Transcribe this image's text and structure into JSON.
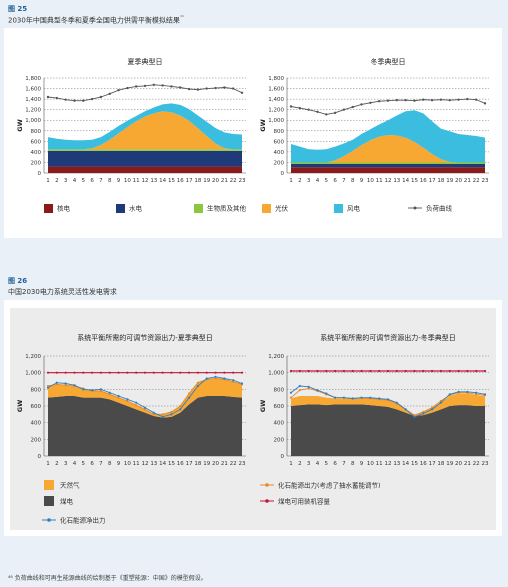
{
  "fig25": {
    "label": "图 25",
    "subtitle": "2030年中国典型冬季和夏季全国电力供需平衡模拟结果",
    "superscript": "⁴⁶"
  },
  "fig26": {
    "label": "图 26",
    "subtitle": "中国2030电力系统灵活性发电需求"
  },
  "footnote": "⁴⁶ 负荷曲线和可再生能源曲线的绘制基于《重塑能源：中国》的模型假设。",
  "colors": {
    "nuclear": "#8b1a1a",
    "hydro": "#1e3a78",
    "biomass": "#8cc63f",
    "solar": "#f7a833",
    "wind": "#3bbde0",
    "load": "#555555",
    "gas": "#f7a833",
    "coal": "#4a4a4a",
    "fossil_net": "#2f7fc1",
    "fossil_pumped": "#e8892b",
    "coal_capacity": "#c0143c"
  },
  "chart_data": [
    {
      "id": "summer-supply",
      "type": "area",
      "title": "夏季典型日",
      "ylabel": "GW",
      "ylim": [
        0,
        1800
      ],
      "yticks": [
        "0",
        "200",
        "400",
        "600",
        "800",
        "1,000",
        "1,200",
        "1,400",
        "1,600",
        "1,800"
      ],
      "categories": [
        "1",
        "2",
        "3",
        "4",
        "5",
        "6",
        "7",
        "8",
        "9",
        "10",
        "11",
        "12",
        "13",
        "14",
        "15",
        "16",
        "17",
        "18",
        "19",
        "20",
        "21",
        "22",
        "23"
      ],
      "stack": [
        {
          "name": "核电",
          "key": "nuclear",
          "values": [
            120,
            120,
            120,
            120,
            120,
            120,
            120,
            120,
            120,
            120,
            120,
            120,
            120,
            120,
            120,
            120,
            120,
            120,
            120,
            120,
            120,
            120,
            120
          ]
        },
        {
          "name": "水电",
          "key": "hydro",
          "values": [
            300,
            300,
            300,
            300,
            300,
            300,
            300,
            300,
            300,
            300,
            300,
            300,
            300,
            300,
            300,
            300,
            300,
            300,
            300,
            300,
            300,
            300,
            300
          ]
        },
        {
          "name": "生物质及其他",
          "key": "biomass",
          "values": [
            30,
            30,
            30,
            30,
            30,
            30,
            30,
            30,
            30,
            30,
            30,
            30,
            30,
            30,
            30,
            30,
            30,
            30,
            30,
            30,
            30,
            30,
            30
          ]
        },
        {
          "name": "光伏",
          "key": "solar",
          "values": [
            0,
            0,
            0,
            0,
            0,
            20,
            80,
            180,
            300,
            420,
            530,
            620,
            680,
            720,
            700,
            640,
            540,
            400,
            250,
            110,
            20,
            0,
            0
          ]
        },
        {
          "name": "风电",
          "key": "wind",
          "values": [
            230,
            200,
            180,
            170,
            170,
            160,
            150,
            150,
            140,
            120,
            100,
            100,
            110,
            130,
            170,
            200,
            220,
            240,
            270,
            290,
            300,
            290,
            280
          ]
        }
      ],
      "load": {
        "name": "负荷曲线",
        "values": [
          1440,
          1420,
          1390,
          1370,
          1370,
          1400,
          1440,
          1500,
          1570,
          1610,
          1640,
          1650,
          1670,
          1660,
          1640,
          1620,
          1590,
          1580,
          1600,
          1610,
          1620,
          1600,
          1520
        ]
      }
    },
    {
      "id": "winter-supply",
      "type": "area",
      "title": "冬季典型日",
      "ylabel": "GW",
      "ylim": [
        0,
        1800
      ],
      "yticks": [
        "0",
        "200",
        "400",
        "600",
        "800",
        "1,000",
        "1,200",
        "1,400",
        "1,600",
        "1,800"
      ],
      "categories": [
        "1",
        "2",
        "3",
        "4",
        "5",
        "6",
        "7",
        "8",
        "9",
        "10",
        "11",
        "12",
        "13",
        "14",
        "15",
        "16",
        "17",
        "18",
        "19",
        "20",
        "21",
        "22",
        "23"
      ],
      "stack": [
        {
          "name": "核电",
          "key": "nuclear",
          "values": [
            110,
            110,
            110,
            110,
            110,
            110,
            110,
            110,
            110,
            110,
            110,
            110,
            110,
            110,
            110,
            110,
            110,
            110,
            110,
            110,
            110,
            110,
            110
          ]
        },
        {
          "name": "水电",
          "key": "hydro",
          "values": [
            60,
            60,
            60,
            60,
            60,
            60,
            60,
            60,
            60,
            60,
            60,
            60,
            60,
            60,
            60,
            60,
            60,
            60,
            60,
            60,
            60,
            60,
            60
          ]
        },
        {
          "name": "生物质及其他",
          "key": "biomass",
          "values": [
            30,
            30,
            30,
            30,
            30,
            30,
            30,
            30,
            30,
            30,
            30,
            30,
            30,
            30,
            30,
            30,
            30,
            30,
            30,
            30,
            30,
            30,
            30
          ]
        },
        {
          "name": "光伏",
          "key": "solar",
          "values": [
            0,
            0,
            0,
            0,
            0,
            40,
            120,
            220,
            330,
            420,
            490,
            520,
            510,
            470,
            390,
            280,
            160,
            60,
            10,
            0,
            0,
            0,
            0
          ]
        },
        {
          "name": "风电",
          "key": "wind",
          "values": [
            350,
            300,
            250,
            240,
            250,
            260,
            240,
            210,
            210,
            210,
            230,
            280,
            380,
            500,
            600,
            650,
            620,
            580,
            580,
            540,
            520,
            500,
            470
          ]
        }
      ],
      "load": {
        "name": "负荷曲线",
        "values": [
          1260,
          1230,
          1200,
          1160,
          1110,
          1140,
          1200,
          1250,
          1300,
          1330,
          1360,
          1370,
          1380,
          1380,
          1370,
          1390,
          1380,
          1390,
          1380,
          1390,
          1400,
          1390,
          1320
        ]
      }
    },
    {
      "id": "summer-flex",
      "type": "area",
      "title": "系统平衡所需的可调节资源出力-夏季典型日",
      "ylabel": "GW",
      "ylim": [
        0,
        1200
      ],
      "yticks": [
        "0",
        "200",
        "400",
        "600",
        "800",
        "1,000",
        "1,200"
      ],
      "categories": [
        "1",
        "2",
        "3",
        "4",
        "5",
        "6",
        "7",
        "8",
        "9",
        "10",
        "11",
        "12",
        "13",
        "14",
        "15",
        "16",
        "17",
        "18",
        "19",
        "20",
        "21",
        "22",
        "23"
      ],
      "stack": [
        {
          "name": "煤电",
          "key": "coal",
          "values": [
            700,
            710,
            720,
            720,
            700,
            700,
            700,
            680,
            640,
            600,
            560,
            520,
            480,
            460,
            470,
            520,
            620,
            700,
            720,
            720,
            720,
            710,
            700
          ]
        },
        {
          "name": "天然气",
          "key": "gas",
          "values": [
            140,
            150,
            130,
            120,
            110,
            80,
            80,
            60,
            60,
            60,
            50,
            40,
            20,
            40,
            60,
            80,
            130,
            180,
            200,
            210,
            200,
            180,
            160
          ]
        }
      ],
      "lines": [
        {
          "name": "化石能源出力(考虑了抽水蓄能调节)",
          "key": "fossil_pumped",
          "values": [
            840,
            860,
            850,
            840,
            810,
            780,
            780,
            740,
            700,
            660,
            610,
            560,
            500,
            500,
            530,
            600,
            750,
            880,
            920,
            930,
            920,
            890,
            860
          ]
        },
        {
          "name": "煤电可用装机容量",
          "key": "coal_capacity",
          "values": [
            1000,
            1000,
            1000,
            1000,
            1000,
            1000,
            1000,
            1000,
            1000,
            1000,
            1000,
            1000,
            1000,
            1000,
            1000,
            1000,
            1000,
            1000,
            1000,
            1000,
            1000,
            1000,
            1000
          ]
        },
        {
          "name": "化石能源净出力",
          "key": "fossil_net",
          "values": [
            820,
            880,
            870,
            850,
            800,
            790,
            800,
            760,
            720,
            680,
            640,
            580,
            520,
            470,
            500,
            560,
            700,
            840,
            930,
            950,
            930,
            910,
            870
          ]
        }
      ]
    },
    {
      "id": "winter-flex",
      "type": "area",
      "title": "系统平衡所需的可调节资源出力-冬季典型日",
      "ylabel": "GW",
      "ylim": [
        0,
        1200
      ],
      "yticks": [
        "0",
        "200",
        "400",
        "600",
        "800",
        "1,000",
        "1,200"
      ],
      "categories": [
        "1",
        "2",
        "3",
        "4",
        "5",
        "6",
        "7",
        "8",
        "9",
        "10",
        "11",
        "12",
        "13",
        "14",
        "15",
        "16",
        "17",
        "18",
        "19",
        "20",
        "21",
        "22",
        "23"
      ],
      "stack": [
        {
          "name": "煤电",
          "key": "coal",
          "values": [
            600,
            610,
            620,
            620,
            610,
            620,
            620,
            620,
            620,
            610,
            600,
            590,
            560,
            520,
            480,
            490,
            520,
            560,
            600,
            610,
            610,
            600,
            600
          ]
        },
        {
          "name": "天然气",
          "key": "gas",
          "values": [
            90,
            110,
            100,
            100,
            90,
            70,
            70,
            70,
            80,
            80,
            80,
            80,
            70,
            40,
            10,
            40,
            60,
            80,
            120,
            140,
            140,
            130,
            120
          ]
        }
      ],
      "lines": [
        {
          "name": "化石能源出力(考虑了抽水蓄能调节)",
          "key": "fossil_pumped",
          "values": [
            700,
            790,
            810,
            780,
            740,
            700,
            700,
            690,
            700,
            690,
            680,
            670,
            630,
            560,
            490,
            530,
            580,
            660,
            730,
            760,
            760,
            740,
            730
          ]
        },
        {
          "name": "煤电可用装机容量",
          "key": "coal_capacity",
          "values": [
            1020,
            1020,
            1020,
            1020,
            1020,
            1020,
            1020,
            1020,
            1020,
            1020,
            1020,
            1020,
            1020,
            1020,
            1020,
            1020,
            1020,
            1020,
            1020,
            1020,
            1020,
            1020,
            1020
          ]
        },
        {
          "name": "化石能源净出力",
          "key": "fossil_net",
          "values": [
            760,
            840,
            830,
            790,
            750,
            700,
            700,
            690,
            700,
            700,
            690,
            680,
            640,
            560,
            470,
            510,
            560,
            640,
            740,
            770,
            770,
            760,
            740
          ]
        }
      ]
    }
  ],
  "legend1": [
    {
      "label": "核电",
      "key": "nuclear"
    },
    {
      "label": "水电",
      "key": "hydro"
    },
    {
      "label": "生物质及其他",
      "key": "biomass"
    },
    {
      "label": "光伏",
      "key": "solar"
    },
    {
      "label": "风电",
      "key": "wind"
    },
    {
      "label": "负荷曲线",
      "key": "load"
    }
  ],
  "legend2": [
    {
      "label": "天然气",
      "key": "gas"
    },
    {
      "label": "化石能源出力(考虑了抽水蓄能调节)",
      "key": "fossil_pumped"
    },
    {
      "label": "煤电",
      "key": "coal"
    },
    {
      "label": "煤电可用装机容量",
      "key": "coal_capacity"
    },
    {
      "label": "化石能源净出力",
      "key": "fossil_net"
    }
  ]
}
